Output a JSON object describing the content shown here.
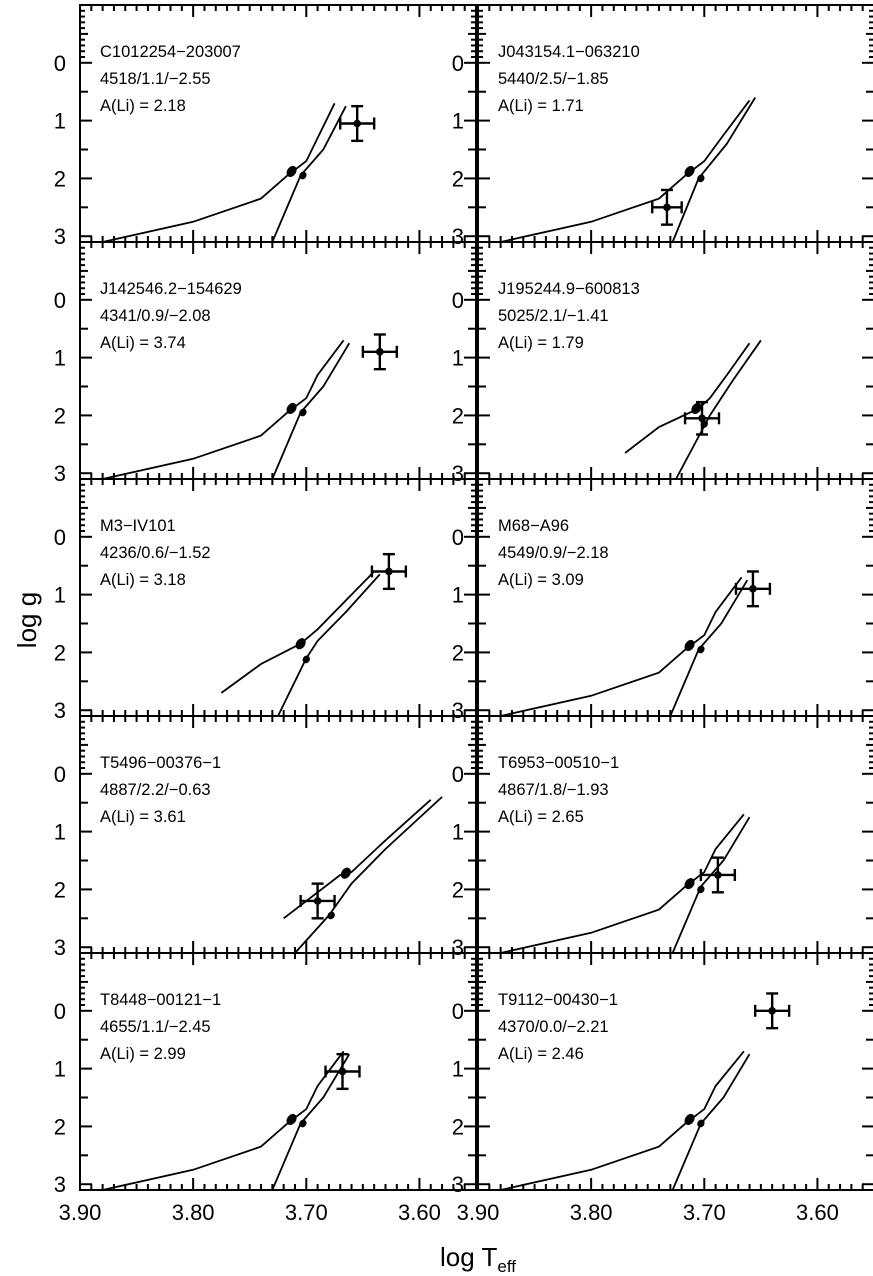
{
  "figure": {
    "xlabel_main": "log T",
    "xlabel_sub": "eff",
    "ylabel": "log g"
  },
  "chart_data": [
    {
      "type": "scatter",
      "title": "C1012254−203007",
      "annotation_lines": [
        "C1012254−203007",
        "4518/1.1/−2.55",
        "A(Li) = 2.18"
      ],
      "xlim": [
        3.9,
        3.55
      ],
      "ylim": [
        3.1,
        -1.0
      ],
      "xticks": [
        "3.90",
        "3.80",
        "3.70",
        "3.60"
      ],
      "yticks": [
        "0",
        "1",
        "2",
        "3"
      ],
      "point": {
        "x": 3.655,
        "y": 1.05,
        "xerr": 0.015,
        "yerr": 0.3
      },
      "track": [
        [
          3.675,
          0.7
        ],
        [
          3.69,
          1.3
        ],
        [
          3.7,
          1.7
        ],
        [
          3.71,
          1.85
        ],
        [
          3.715,
          1.92
        ],
        [
          3.74,
          2.35
        ],
        [
          3.8,
          2.75
        ],
        [
          3.88,
          3.1
        ]
      ],
      "track_branch": [
        [
          3.665,
          0.75
        ],
        [
          3.685,
          1.5
        ],
        [
          3.705,
          1.95
        ],
        [
          3.73,
          3.1
        ]
      ],
      "markers": [
        [
          3.713,
          1.88
        ],
        [
          3.703,
          1.95
        ]
      ]
    },
    {
      "type": "scatter",
      "title": "J043154.1−063210",
      "annotation_lines": [
        "J043154.1−063210",
        "5440/2.5/−1.85",
        "A(Li) = 1.71"
      ],
      "xlim": [
        3.9,
        3.55
      ],
      "ylim": [
        3.1,
        -1.0
      ],
      "xticks": [
        "3.90",
        "3.80",
        "3.70",
        "3.60"
      ],
      "yticks": [
        "0",
        "1",
        "2",
        "3"
      ],
      "point": {
        "x": 3.733,
        "y": 2.5,
        "xerr": 0.013,
        "yerr": 0.3
      },
      "track": [
        [
          3.66,
          0.65
        ],
        [
          3.685,
          1.3
        ],
        [
          3.7,
          1.7
        ],
        [
          3.71,
          1.85
        ],
        [
          3.715,
          1.92
        ],
        [
          3.74,
          2.35
        ],
        [
          3.8,
          2.75
        ],
        [
          3.88,
          3.1
        ]
      ],
      "track_branch": [
        [
          3.655,
          0.6
        ],
        [
          3.68,
          1.4
        ],
        [
          3.705,
          2.0
        ],
        [
          3.728,
          3.1
        ]
      ],
      "markers": [
        [
          3.713,
          1.88
        ],
        [
          3.703,
          2.0
        ]
      ]
    },
    {
      "type": "scatter",
      "title": "J142546.2−154629",
      "annotation_lines": [
        "J142546.2−154629",
        "4341/0.9/−2.08",
        "A(Li) = 3.74"
      ],
      "xlim": [
        3.9,
        3.55
      ],
      "ylim": [
        3.1,
        -1.0
      ],
      "xticks": [
        "3.90",
        "3.80",
        "3.70",
        "3.60"
      ],
      "yticks": [
        "0",
        "1",
        "2",
        "3"
      ],
      "point": {
        "x": 3.635,
        "y": 0.9,
        "xerr": 0.015,
        "yerr": 0.3
      },
      "track": [
        [
          3.667,
          0.7
        ],
        [
          3.69,
          1.3
        ],
        [
          3.7,
          1.7
        ],
        [
          3.71,
          1.85
        ],
        [
          3.715,
          1.92
        ],
        [
          3.74,
          2.35
        ],
        [
          3.8,
          2.75
        ],
        [
          3.88,
          3.1
        ]
      ],
      "track_branch": [
        [
          3.662,
          0.75
        ],
        [
          3.685,
          1.5
        ],
        [
          3.705,
          1.95
        ],
        [
          3.73,
          3.1
        ]
      ],
      "markers": [
        [
          3.713,
          1.88
        ],
        [
          3.703,
          1.95
        ]
      ]
    },
    {
      "type": "scatter",
      "title": "J195244.9−600813",
      "annotation_lines": [
        "J195244.9−600813",
        "5025/2.1/−1.41",
        "A(Li) = 1.79"
      ],
      "xlim": [
        3.9,
        3.55
      ],
      "ylim": [
        3.1,
        -1.0
      ],
      "xticks": [
        "3.90",
        "3.80",
        "3.70",
        "3.60"
      ],
      "yticks": [
        "0",
        "1",
        "2",
        "3"
      ],
      "point": {
        "x": 3.702,
        "y": 2.05,
        "xerr": 0.015,
        "yerr": 0.28
      },
      "track": [
        [
          3.66,
          0.75
        ],
        [
          3.68,
          1.3
        ],
        [
          3.695,
          1.7
        ],
        [
          3.705,
          1.88
        ],
        [
          3.74,
          2.2
        ],
        [
          3.77,
          2.65
        ]
      ],
      "track_branch": [
        [
          3.65,
          0.7
        ],
        [
          3.675,
          1.4
        ],
        [
          3.695,
          2.0
        ],
        [
          3.725,
          3.1
        ]
      ],
      "markers": [
        [
          3.707,
          1.88
        ],
        [
          3.7,
          2.15
        ]
      ]
    },
    {
      "type": "scatter",
      "title": "M3−IV101",
      "annotation_lines": [
        "M3−IV101",
        "4236/0.6/−1.52",
        "A(Li) = 3.18"
      ],
      "xlim": [
        3.9,
        3.55
      ],
      "ylim": [
        3.1,
        -1.0
      ],
      "xticks": [
        "3.90",
        "3.80",
        "3.70",
        "3.60"
      ],
      "yticks": [
        "0",
        "1",
        "2",
        "3"
      ],
      "point": {
        "x": 3.627,
        "y": 0.6,
        "xerr": 0.015,
        "yerr": 0.3
      },
      "track": [
        [
          3.64,
          0.6
        ],
        [
          3.665,
          1.1
        ],
        [
          3.69,
          1.6
        ],
        [
          3.705,
          1.85
        ],
        [
          3.74,
          2.2
        ],
        [
          3.775,
          2.7
        ]
      ],
      "track_branch": [
        [
          3.635,
          0.65
        ],
        [
          3.665,
          1.3
        ],
        [
          3.69,
          1.8
        ],
        [
          3.7,
          2.1
        ],
        [
          3.725,
          3.1
        ]
      ],
      "markers": [
        [
          3.705,
          1.85
        ],
        [
          3.7,
          2.12
        ]
      ]
    },
    {
      "type": "scatter",
      "title": "M68−A96",
      "annotation_lines": [
        "M68−A96",
        "4549/0.9/−2.18",
        "A(Li) = 3.09"
      ],
      "xlim": [
        3.9,
        3.55
      ],
      "ylim": [
        3.1,
        -1.0
      ],
      "xticks": [
        "3.90",
        "3.80",
        "3.70",
        "3.60"
      ],
      "yticks": [
        "0",
        "1",
        "2",
        "3"
      ],
      "point": {
        "x": 3.657,
        "y": 0.9,
        "xerr": 0.015,
        "yerr": 0.3
      },
      "track": [
        [
          3.667,
          0.7
        ],
        [
          3.69,
          1.3
        ],
        [
          3.7,
          1.7
        ],
        [
          3.71,
          1.85
        ],
        [
          3.715,
          1.92
        ],
        [
          3.74,
          2.35
        ],
        [
          3.8,
          2.75
        ],
        [
          3.88,
          3.1
        ]
      ],
      "track_branch": [
        [
          3.662,
          0.75
        ],
        [
          3.685,
          1.5
        ],
        [
          3.705,
          1.95
        ],
        [
          3.73,
          3.1
        ]
      ],
      "markers": [
        [
          3.713,
          1.88
        ],
        [
          3.703,
          1.95
        ]
      ]
    },
    {
      "type": "scatter",
      "title": "T5496−00376−1",
      "annotation_lines": [
        "T5496−00376−1",
        "4887/2.2/−0.63",
        "A(Li) = 3.61"
      ],
      "xlim": [
        3.9,
        3.55
      ],
      "ylim": [
        3.1,
        -1.0
      ],
      "xticks": [
        "3.90",
        "3.80",
        "3.70",
        "3.60"
      ],
      "yticks": [
        "0",
        "1",
        "2",
        "3"
      ],
      "point": {
        "x": 3.69,
        "y": 2.2,
        "xerr": 0.015,
        "yerr": 0.3
      },
      "track": [
        [
          3.59,
          0.45
        ],
        [
          3.63,
          1.15
        ],
        [
          3.66,
          1.7
        ],
        [
          3.67,
          1.75
        ],
        [
          3.7,
          2.2
        ],
        [
          3.72,
          2.5
        ]
      ],
      "track_branch": [
        [
          3.58,
          0.4
        ],
        [
          3.63,
          1.3
        ],
        [
          3.66,
          1.9
        ],
        [
          3.68,
          2.45
        ],
        [
          3.71,
          3.1
        ]
      ],
      "markers": [
        [
          3.665,
          1.72
        ],
        [
          3.678,
          2.45
        ]
      ]
    },
    {
      "type": "scatter",
      "title": "T6953−00510−1",
      "annotation_lines": [
        "T6953−00510−1",
        "4867/1.8/−1.93",
        "A(Li) = 2.65"
      ],
      "xlim": [
        3.9,
        3.55
      ],
      "ylim": [
        3.1,
        -1.0
      ],
      "xticks": [
        "3.90",
        "3.80",
        "3.70",
        "3.60"
      ],
      "yticks": [
        "0",
        "1",
        "2",
        "3"
      ],
      "point": {
        "x": 3.688,
        "y": 1.75,
        "xerr": 0.015,
        "yerr": 0.3
      },
      "track": [
        [
          3.665,
          0.7
        ],
        [
          3.69,
          1.3
        ],
        [
          3.7,
          1.7
        ],
        [
          3.71,
          1.85
        ],
        [
          3.715,
          1.92
        ],
        [
          3.74,
          2.35
        ],
        [
          3.8,
          2.75
        ],
        [
          3.88,
          3.1
        ]
      ],
      "track_branch": [
        [
          3.66,
          0.75
        ],
        [
          3.683,
          1.5
        ],
        [
          3.703,
          1.95
        ],
        [
          3.728,
          3.1
        ]
      ],
      "markers": [
        [
          3.713,
          1.9
        ],
        [
          3.703,
          2.0
        ]
      ]
    },
    {
      "type": "scatter",
      "title": "T8448−00121−1",
      "annotation_lines": [
        "T8448−00121−1",
        "4655/1.1/−2.45",
        "A(Li) = 2.99"
      ],
      "xlim": [
        3.9,
        3.55
      ],
      "ylim": [
        3.1,
        -1.0
      ],
      "xticks": [
        "3.90",
        "3.80",
        "3.70",
        "3.60"
      ],
      "yticks": [
        "0",
        "1",
        "2",
        "3"
      ],
      "point": {
        "x": 3.668,
        "y": 1.05,
        "xerr": 0.015,
        "yerr": 0.3
      },
      "track": [
        [
          3.667,
          0.7
        ],
        [
          3.69,
          1.3
        ],
        [
          3.7,
          1.7
        ],
        [
          3.71,
          1.85
        ],
        [
          3.715,
          1.92
        ],
        [
          3.74,
          2.35
        ],
        [
          3.8,
          2.75
        ],
        [
          3.88,
          3.1
        ]
      ],
      "track_branch": [
        [
          3.662,
          0.75
        ],
        [
          3.685,
          1.5
        ],
        [
          3.705,
          1.95
        ],
        [
          3.73,
          3.1
        ]
      ],
      "markers": [
        [
          3.713,
          1.88
        ],
        [
          3.703,
          1.95
        ]
      ]
    },
    {
      "type": "scatter",
      "title": "T9112−00430−1",
      "annotation_lines": [
        "T9112−00430−1",
        "4370/0.0/−2.21",
        "A(Li) = 2.46"
      ],
      "xlim": [
        3.9,
        3.55
      ],
      "ylim": [
        3.1,
        -1.0
      ],
      "xticks": [
        "3.90",
        "3.80",
        "3.70",
        "3.60"
      ],
      "yticks": [
        "0",
        "1",
        "2",
        "3"
      ],
      "point": {
        "x": 3.64,
        "y": 0.0,
        "xerr": 0.015,
        "yerr": 0.3
      },
      "track": [
        [
          3.665,
          0.7
        ],
        [
          3.69,
          1.3
        ],
        [
          3.7,
          1.7
        ],
        [
          3.71,
          1.85
        ],
        [
          3.715,
          1.92
        ],
        [
          3.74,
          2.35
        ],
        [
          3.8,
          2.75
        ],
        [
          3.88,
          3.1
        ]
      ],
      "track_branch": [
        [
          3.66,
          0.75
        ],
        [
          3.683,
          1.5
        ],
        [
          3.703,
          1.95
        ],
        [
          3.728,
          3.1
        ]
      ],
      "markers": [
        [
          3.713,
          1.88
        ],
        [
          3.703,
          1.95
        ]
      ]
    }
  ]
}
